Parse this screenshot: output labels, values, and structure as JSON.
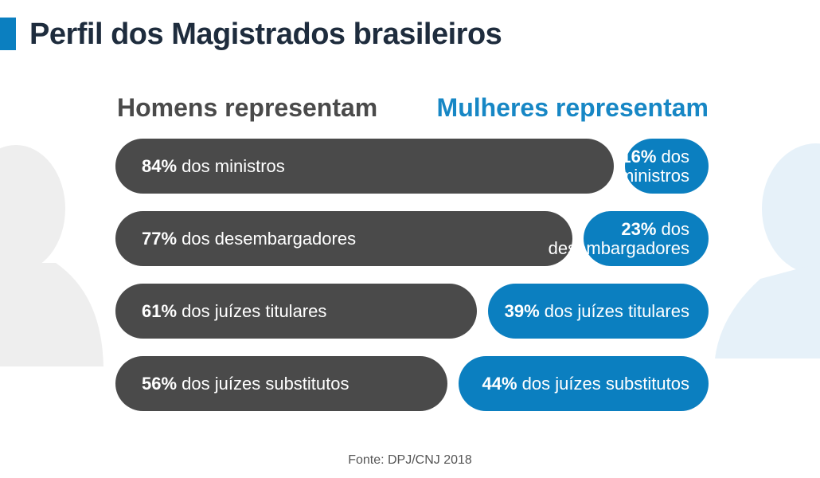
{
  "title": "Perfil dos Magistrados brasileiros",
  "colors": {
    "accent": "#0b7fc0",
    "men_bar": "#4a4a4a",
    "women_bar": "#0b7fc0",
    "title_text": "#1e2c3d",
    "men_header": "#4a4a4a",
    "women_header": "#1787c5"
  },
  "headers": {
    "men": "Homens representam",
    "women": "Mulheres representam"
  },
  "source": "Fonte: DPJ/CNJ 2018",
  "chart_data": {
    "type": "bar",
    "categories": [
      "ministros",
      "desembargadores",
      "juízes titulares",
      "juízes substitutos"
    ],
    "series": [
      {
        "name": "Homens representam",
        "values": [
          84,
          77,
          61,
          56
        ]
      },
      {
        "name": "Mulheres representam",
        "values": [
          16,
          23,
          39,
          44
        ]
      }
    ],
    "rows": [
      {
        "men_pct": "84%",
        "men_label": "dos ministros",
        "women_pct": "16%",
        "women_label_a": "dos",
        "women_label_b": "ministros"
      },
      {
        "men_pct": "77%",
        "men_label": "dos desembargadores",
        "women_pct": "23%",
        "women_label_a": "dos",
        "women_label_b": "desembargadores"
      },
      {
        "men_pct": "61%",
        "men_label": "dos juízes titulares",
        "women_pct": "39%",
        "women_label_a": "dos juízes titulares",
        "women_label_b": ""
      },
      {
        "men_pct": "56%",
        "men_label": "dos juízes substitutos",
        "women_pct": "44%",
        "women_label_a": "dos juízes substitutos",
        "women_label_b": ""
      }
    ]
  }
}
